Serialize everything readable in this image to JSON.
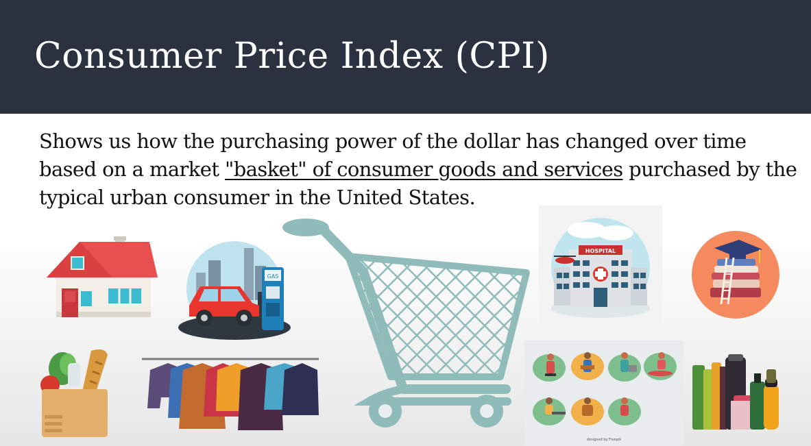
{
  "slide": {
    "title": "Consumer Price Index (CPI)",
    "body_before": "Shows us how the purchasing power of the dollar has changed over time based on a market ",
    "body_underlined": "\"basket\" of consumer goods and services",
    "body_after": " purchased by the typical urban consumer in the United States."
  },
  "illustrations": {
    "gas_sign": "GAS",
    "hospital_sign": "HOSPITAL",
    "credit": "designed by Freepik"
  },
  "colors": {
    "header_bg": "#2c3140",
    "cart": "#8fbcba",
    "house_roof": "#e8504f"
  }
}
